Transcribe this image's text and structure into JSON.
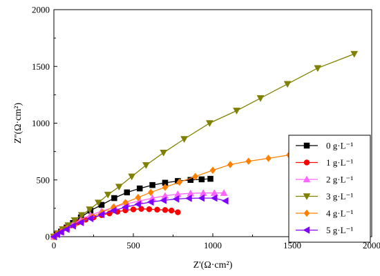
{
  "chart_data": {
    "type": "scatter",
    "xlabel": "Z'(Ω·cm²)",
    "ylabel": "Z''(Ω·cm²)",
    "xlim": [
      0,
      2000
    ],
    "ylim": [
      0,
      2000
    ],
    "xticks": [
      0,
      500,
      1000,
      1500,
      2000
    ],
    "yticks": [
      0,
      500,
      1000,
      1500,
      2000
    ],
    "grid": false,
    "legend_position": "right",
    "series": [
      {
        "name": "0 g·L⁻¹",
        "color": "#000000",
        "marker": "square",
        "x": [
          0,
          20,
          45,
          80,
          120,
          170,
          230,
          300,
          380,
          460,
          540,
          620,
          700,
          780,
          860,
          930,
          985
        ],
        "y": [
          0,
          20,
          45,
          80,
          120,
          170,
          230,
          280,
          340,
          390,
          425,
          455,
          475,
          490,
          500,
          505,
          510
        ]
      },
      {
        "name": "1 g·L⁻¹",
        "color": "#ff0000",
        "marker": "circle",
        "x": [
          0,
          20,
          45,
          75,
          110,
          150,
          200,
          250,
          300,
          350,
          400,
          450,
          500,
          550,
          600,
          650,
          700,
          740,
          780
        ],
        "y": [
          0,
          20,
          45,
          75,
          100,
          125,
          150,
          170,
          190,
          205,
          220,
          232,
          240,
          245,
          242,
          238,
          235,
          230,
          215
        ]
      },
      {
        "name": "2 g·L⁻¹",
        "color": "#ff66ff",
        "marker": "triangle-up",
        "x": [
          0,
          20,
          45,
          80,
          120,
          170,
          230,
          300,
          380,
          460,
          540,
          620,
          700,
          780,
          860,
          940,
          1010,
          1070
        ],
        "y": [
          0,
          20,
          45,
          75,
          110,
          150,
          190,
          225,
          260,
          290,
          315,
          340,
          360,
          375,
          382,
          385,
          385,
          385
        ]
      },
      {
        "name": "3 g·L⁻¹",
        "color": "#808000",
        "marker": "triangle-down",
        "x": [
          0,
          25,
          55,
          90,
          130,
          175,
          225,
          280,
          340,
          410,
          490,
          580,
          690,
          820,
          980,
          1150,
          1300,
          1470,
          1660,
          1890
        ],
        "y": [
          0,
          30,
          65,
          100,
          145,
          190,
          240,
          300,
          370,
          440,
          530,
          630,
          740,
          860,
          1000,
          1110,
          1220,
          1345,
          1485,
          1610
        ]
      },
      {
        "name": "4 g·L⁻¹",
        "color": "#ff8000",
        "marker": "diamond",
        "x": [
          0,
          20,
          50,
          85,
          130,
          180,
          240,
          305,
          375,
          450,
          530,
          610,
          700,
          790,
          890,
          1000,
          1110,
          1225,
          1350,
          1480
        ],
        "y": [
          0,
          20,
          45,
          70,
          100,
          135,
          175,
          215,
          260,
          300,
          345,
          390,
          435,
          480,
          530,
          585,
          635,
          665,
          690,
          720
        ]
      },
      {
        "name": "5 g·L⁻¹",
        "color": "#8000ff",
        "marker": "triangle-left",
        "x": [
          0,
          20,
          45,
          80,
          120,
          170,
          230,
          300,
          375,
          450,
          530,
          610,
          690,
          770,
          850,
          930,
          1010,
          1080
        ],
        "y": [
          0,
          20,
          40,
          65,
          95,
          125,
          160,
          195,
          230,
          260,
          285,
          305,
          320,
          332,
          338,
          340,
          340,
          315
        ]
      }
    ]
  }
}
